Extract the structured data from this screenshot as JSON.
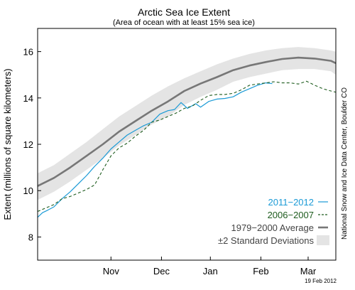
{
  "chart_data": {
    "type": "line",
    "title": "Arctic Sea Ice Extent",
    "subtitle": "(Area of ocean with at least 15% sea ice)",
    "ylabel": "Extent (millions of square kilometers)",
    "credit": "National Snow and Ice Data Center, Boulder CO",
    "date_stamp": "19 Feb 2012",
    "ylim": [
      7,
      17
    ],
    "yticks": [
      8,
      10,
      12,
      14,
      16
    ],
    "xlim_days": [
      0,
      183
    ],
    "x_unit": "days after 2011-10-01",
    "months": [
      {
        "label": "Nov",
        "day": 45
      },
      {
        "label": "Dec",
        "day": 76
      },
      {
        "label": "Jan",
        "day": 106
      },
      {
        "label": "Feb",
        "day": 137
      },
      {
        "label": "Mar",
        "day": 166
      }
    ],
    "legend_position": "lower-right",
    "legend": [
      {
        "label": "2011−2012",
        "color": "#1a9ad6",
        "style": "solid"
      },
      {
        "label": "2006−2007",
        "color": "#1e5c1e",
        "style": "dashed"
      },
      {
        "label": "1979−2000 Average",
        "color": "#777777",
        "style": "solid-thick"
      },
      {
        "label": "±2 Standard Deviations",
        "color": "#e4e4e4",
        "style": "band"
      }
    ],
    "series": [
      {
        "name": "1979−2000 Average",
        "color": "#777777",
        "x": [
          0,
          10,
          20,
          30,
          40,
          50,
          60,
          70,
          80,
          90,
          100,
          110,
          120,
          130,
          140,
          150,
          160,
          170,
          180,
          183
        ],
        "y": [
          10.2,
          10.55,
          11.0,
          11.5,
          12.0,
          12.55,
          13.0,
          13.45,
          13.85,
          14.3,
          14.62,
          14.9,
          15.2,
          15.4,
          15.55,
          15.68,
          15.74,
          15.7,
          15.6,
          15.5
        ]
      },
      {
        "name": "2011−2012",
        "color": "#1a9ad6",
        "x": [
          0,
          3,
          6,
          10,
          15,
          20,
          25,
          30,
          35,
          40,
          45,
          50,
          55,
          60,
          65,
          70,
          75,
          80,
          84,
          88,
          92,
          97,
          100,
          105,
          110,
          115,
          120,
          125,
          130,
          135,
          140,
          144
        ],
        "y": [
          8.85,
          9.05,
          9.15,
          9.3,
          9.65,
          9.95,
          10.3,
          10.65,
          11.05,
          11.4,
          11.8,
          12.1,
          12.4,
          12.6,
          12.8,
          12.95,
          13.3,
          13.45,
          13.5,
          13.8,
          13.55,
          13.75,
          13.6,
          13.85,
          13.95,
          13.98,
          14.05,
          14.25,
          14.4,
          14.55,
          14.65,
          14.62
        ]
      },
      {
        "name": "2006−2007",
        "color": "#1e5c1e",
        "x": [
          0,
          5,
          10,
          15,
          20,
          25,
          30,
          35,
          40,
          45,
          50,
          55,
          60,
          65,
          70,
          75,
          80,
          85,
          90,
          95,
          100,
          105,
          110,
          115,
          120,
          125,
          130,
          135,
          140,
          145,
          150,
          155,
          160,
          165,
          170,
          175,
          180,
          183
        ],
        "y": [
          9.1,
          9.25,
          9.4,
          9.65,
          9.75,
          9.9,
          10.05,
          10.25,
          10.9,
          11.5,
          11.85,
          12.05,
          12.35,
          12.6,
          12.95,
          13.05,
          13.2,
          13.35,
          13.55,
          13.65,
          13.9,
          14.1,
          14.15,
          14.15,
          14.2,
          14.35,
          14.55,
          14.6,
          14.65,
          14.7,
          14.65,
          14.65,
          14.6,
          14.72,
          14.55,
          14.4,
          14.3,
          14.25
        ]
      }
    ],
    "band": {
      "name": "±2 Standard Deviations",
      "color": "#e4e4e4",
      "x": [
        0,
        10,
        20,
        30,
        40,
        50,
        60,
        70,
        80,
        90,
        100,
        110,
        120,
        130,
        140,
        150,
        160,
        170,
        180,
        183
      ],
      "upper": [
        10.75,
        11.1,
        11.6,
        12.1,
        12.65,
        13.2,
        13.65,
        14.1,
        14.5,
        14.85,
        15.15,
        15.45,
        15.7,
        15.9,
        16.05,
        16.15,
        16.2,
        16.15,
        16.05,
        16.0
      ],
      "lower": [
        9.6,
        9.95,
        10.4,
        10.9,
        11.4,
        11.95,
        12.4,
        12.85,
        13.2,
        13.7,
        14.05,
        14.35,
        14.7,
        14.9,
        15.05,
        15.2,
        15.25,
        15.25,
        15.15,
        15.0
      ]
    }
  }
}
